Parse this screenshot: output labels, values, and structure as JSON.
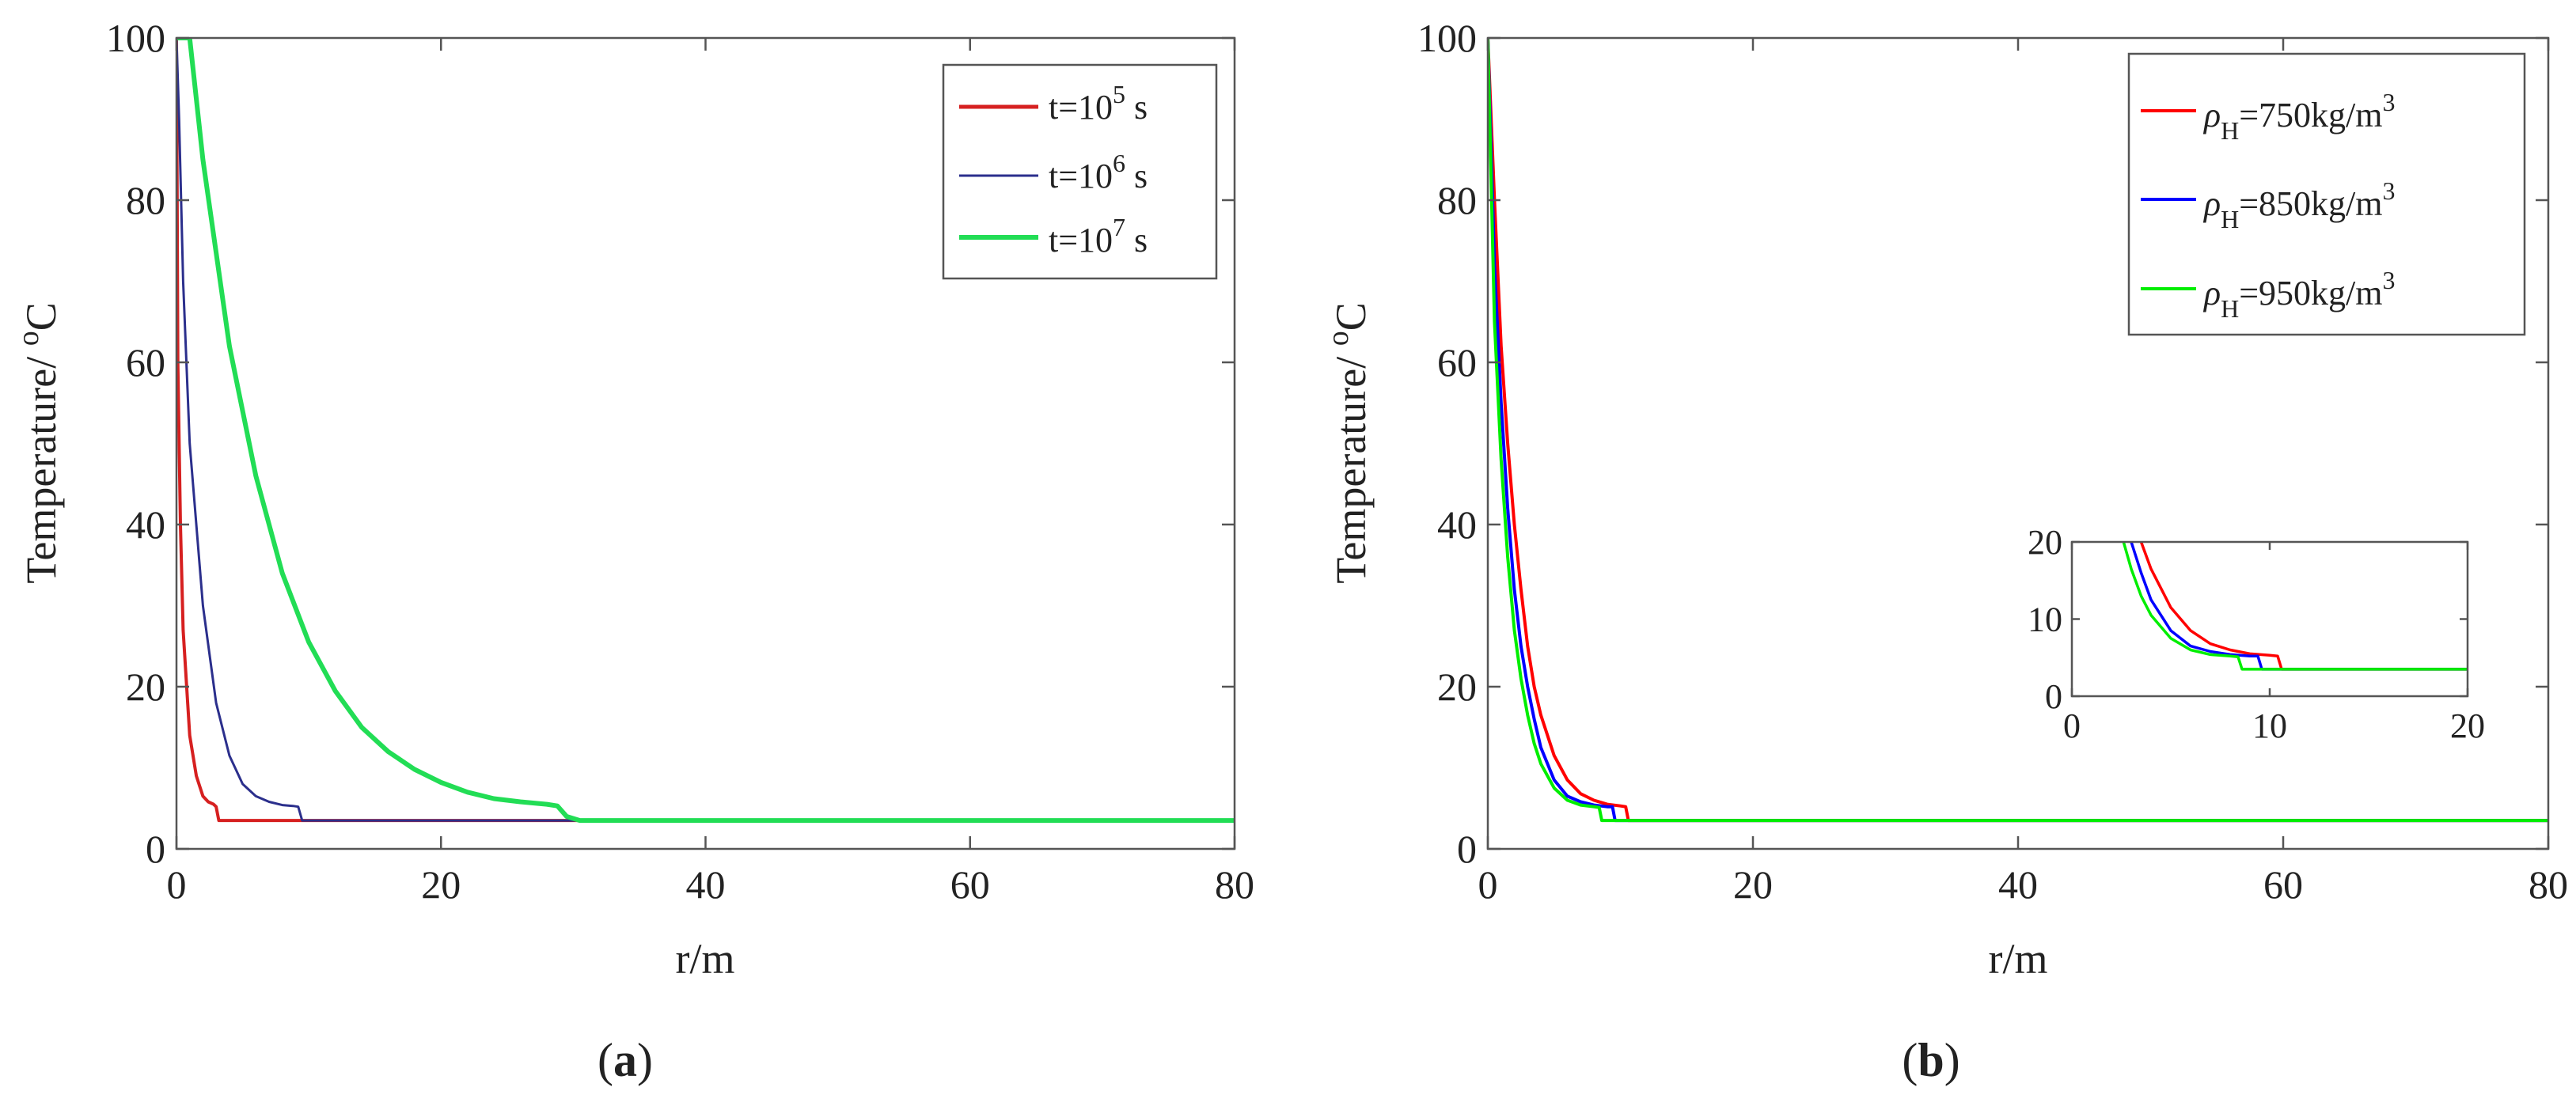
{
  "chart_data": [
    {
      "type": "line",
      "panel_label": {
        "open": "(",
        "letter": "a",
        "close": ")"
      },
      "xlabel": "r/m",
      "ylabel": {
        "text": "Temperature/ ",
        "sup": "o",
        "unit": "C"
      },
      "xlim": [
        0,
        80
      ],
      "ylim": [
        0,
        100
      ],
      "xticks": [
        "0",
        "20",
        "40",
        "60",
        "80"
      ],
      "yticks": [
        "0",
        "20",
        "40",
        "60",
        "80",
        "100"
      ],
      "grid": false,
      "legend_position": "top-right",
      "series": [
        {
          "label": {
            "prefix": "t=10",
            "sup": "5",
            "suffix": " s"
          },
          "color": "#d62020",
          "x": [
            0,
            0.1,
            0.3,
            0.5,
            1,
            1.5,
            2,
            2.4,
            2.8,
            3.0,
            3.2,
            80
          ],
          "y": [
            100,
            60,
            40,
            27,
            14,
            9,
            6.5,
            5.8,
            5.5,
            5.2,
            3.5,
            3.5
          ]
        },
        {
          "label": {
            "prefix": "t=10",
            "sup": "6",
            "suffix": " s"
          },
          "color": "#2b2f8c",
          "x": [
            0,
            0.2,
            0.5,
            1,
            2,
            3,
            4,
            5,
            6,
            7,
            8,
            8.8,
            9.2,
            9.5,
            80
          ],
          "y": [
            100,
            90,
            70,
            50,
            30,
            18,
            11.5,
            8,
            6.5,
            5.8,
            5.4,
            5.3,
            5.2,
            3.5,
            3.5
          ]
        },
        {
          "label": {
            "prefix": "t=10",
            "sup": "7",
            "suffix": " s"
          },
          "color": "#22dd55",
          "x": [
            0,
            1,
            2,
            4,
            6,
            8,
            10,
            12,
            14,
            16,
            18,
            20,
            22,
            24,
            26,
            28,
            28.8,
            29.5,
            30.5,
            80
          ],
          "y": [
            100,
            100,
            85,
            62,
            46,
            34,
            25.5,
            19.5,
            15,
            12,
            9.8,
            8.2,
            7,
            6.2,
            5.8,
            5.5,
            5.3,
            4,
            3.5,
            3.5
          ]
        }
      ]
    },
    {
      "type": "line",
      "panel_label": {
        "open": "(",
        "letter": "b",
        "close": ")"
      },
      "xlabel": "r/m",
      "ylabel": {
        "text": "Temperature/ ",
        "sup": "o",
        "unit": "C"
      },
      "xlim": [
        0,
        80
      ],
      "ylim": [
        0,
        100
      ],
      "xticks": [
        "0",
        "20",
        "40",
        "60",
        "80"
      ],
      "yticks": [
        "0",
        "20",
        "40",
        "60",
        "80",
        "100"
      ],
      "grid": false,
      "legend_position": "top-right",
      "series": [
        {
          "label": {
            "rho": "ρ",
            "sub": "H",
            "mid": "=750kg/m",
            "sup": "3"
          },
          "color": "#ff0000",
          "x": [
            0,
            0.5,
            1,
            1.5,
            2,
            2.5,
            3,
            3.5,
            4,
            5,
            6,
            7,
            8,
            9,
            10,
            10.4,
            10.6,
            80
          ],
          "y": [
            100,
            80,
            62,
            50,
            40,
            32,
            25,
            20,
            16.5,
            11.5,
            8.5,
            6.8,
            6,
            5.5,
            5.3,
            5.2,
            3.5,
            3.5
          ]
        },
        {
          "label": {
            "rho": "ρ",
            "sub": "H",
            "mid": "=850kg/m",
            "sup": "3"
          },
          "color": "#0000ff",
          "x": [
            0,
            0.5,
            1,
            1.5,
            2,
            2.5,
            3,
            3.5,
            4,
            5,
            6,
            7,
            8,
            9,
            9.4,
            9.6,
            80
          ],
          "y": [
            100,
            72,
            55,
            42,
            32,
            25,
            20,
            16,
            12.5,
            8.5,
            6.5,
            5.8,
            5.4,
            5.2,
            5.2,
            3.5,
            3.5
          ]
        },
        {
          "label": {
            "rho": "ρ",
            "sub": "H",
            "mid": "=950kg/m",
            "sup": "3"
          },
          "color": "#00ee00",
          "x": [
            0,
            0.5,
            1,
            1.5,
            2,
            2.5,
            3,
            3.5,
            4,
            5,
            6,
            7,
            8,
            8.4,
            8.6,
            80
          ],
          "y": [
            100,
            65,
            48,
            36,
            27,
            21,
            16.5,
            13,
            10.5,
            7.5,
            6,
            5.4,
            5.2,
            5.1,
            3.5,
            3.5
          ]
        }
      ],
      "inset": {
        "xlim": [
          0,
          20
        ],
        "ylim": [
          0,
          20
        ],
        "xticks": [
          "0",
          "10",
          "20"
        ],
        "yticks": [
          "0",
          "10",
          "20"
        ],
        "grid": false,
        "position": "lower-right"
      }
    }
  ]
}
